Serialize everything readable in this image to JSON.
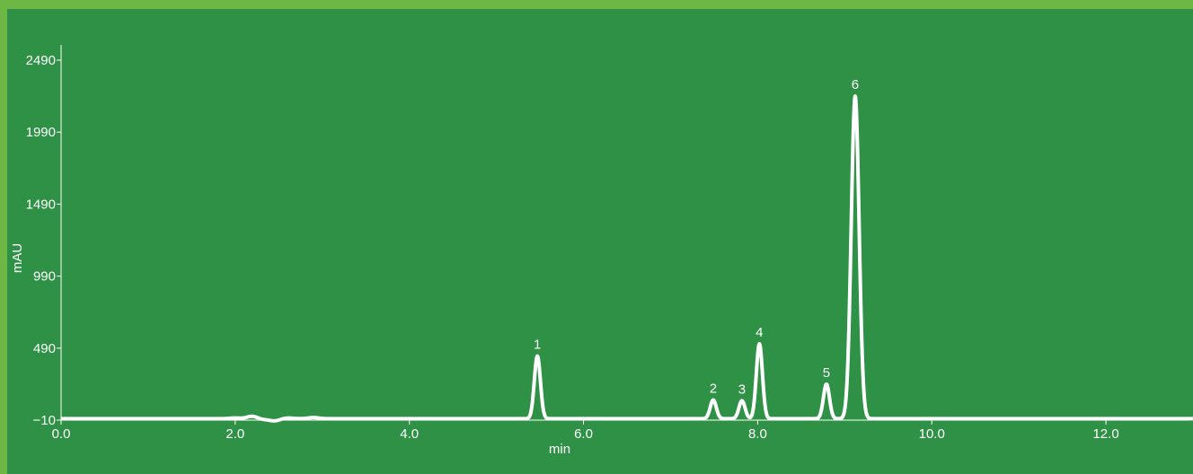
{
  "chart_data": {
    "type": "line",
    "xlabel": "min",
    "ylabel": "mAU",
    "xlim": [
      0,
      13
    ],
    "ylim": [
      -10,
      2490
    ],
    "x_ticks": [
      0,
      2,
      4,
      6,
      8,
      10,
      12
    ],
    "x_tick_labels": [
      "0.0",
      "2.0",
      "4.0",
      "6.0",
      "8.0",
      "10.0",
      "12.0"
    ],
    "y_ticks": [
      -10,
      490,
      990,
      1490,
      1990,
      2490
    ],
    "y_tick_labels": [
      "−10",
      "490",
      "990",
      "1490",
      "1990",
      "2490"
    ],
    "baseline": 0,
    "peaks": [
      {
        "label": "1",
        "x": 5.47,
        "y": 435
      },
      {
        "label": "2",
        "x": 7.49,
        "y": 130
      },
      {
        "label": "3",
        "x": 7.82,
        "y": 125
      },
      {
        "label": "4",
        "x": 8.02,
        "y": 520
      },
      {
        "label": "5",
        "x": 8.79,
        "y": 240
      },
      {
        "label": "6",
        "x": 9.12,
        "y": 2240
      }
    ],
    "noise": [
      {
        "x": 2.0,
        "y": 5
      },
      {
        "x": 2.2,
        "y": 18
      },
      {
        "x": 2.3,
        "y": -6
      },
      {
        "x": 2.45,
        "y": -15
      },
      {
        "x": 2.6,
        "y": 5
      },
      {
        "x": 2.9,
        "y": 8
      }
    ],
    "grid": false,
    "line_color": "#ffffff",
    "background": "#2e9146",
    "border_color": "#6db744"
  }
}
